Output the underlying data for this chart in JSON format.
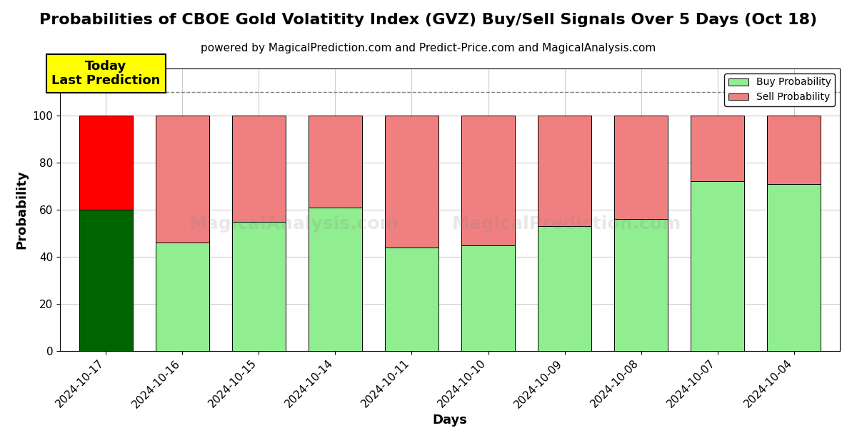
{
  "title": "Probabilities of CBOE Gold Volatitity Index (GVZ) Buy/Sell Signals Over 5 Days (Oct 18)",
  "subtitle": "powered by MagicalPrediction.com and Predict-Price.com and MagicalAnalysis.com",
  "xlabel": "Days",
  "ylabel": "Probability",
  "categories": [
    "2024-10-17",
    "2024-10-16",
    "2024-10-15",
    "2024-10-14",
    "2024-10-11",
    "2024-10-10",
    "2024-10-09",
    "2024-10-08",
    "2024-10-07",
    "2024-10-04"
  ],
  "buy_values": [
    60,
    46,
    55,
    61,
    44,
    45,
    53,
    56,
    72,
    71
  ],
  "sell_values": [
    40,
    54,
    45,
    39,
    56,
    55,
    47,
    44,
    28,
    29
  ],
  "today_bar_buy_color": "#006400",
  "today_bar_sell_color": "#FF0000",
  "other_bar_buy_color": "#90EE90",
  "other_bar_sell_color": "#F08080",
  "bar_edge_color": "#000000",
  "today_annotation_text": "Today\nLast Prediction",
  "today_annotation_bg": "#FFFF00",
  "today_annotation_fontsize": 13,
  "legend_buy_label": "Buy Probability",
  "legend_sell_label": "Sell Probability",
  "ylim": [
    0,
    120
  ],
  "dashed_line_y": 110,
  "title_fontsize": 16,
  "subtitle_fontsize": 11,
  "axis_label_fontsize": 13,
  "tick_fontsize": 11,
  "background_color": "#ffffff",
  "grid_color": "#cccccc"
}
